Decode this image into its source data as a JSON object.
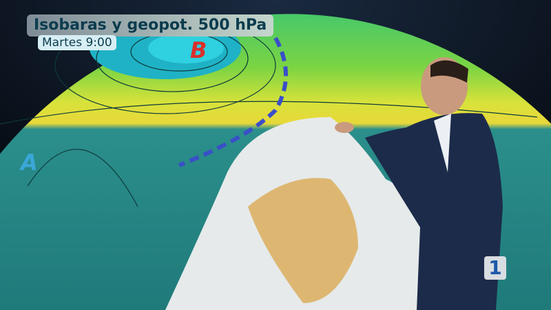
{
  "overlay": {
    "title": "Isobaras y geopot. 500 hPa",
    "subtitle": "Martes 9:00"
  },
  "map": {
    "low_label": "B",
    "high_label": "A",
    "low_color": "#d9302b",
    "high_color": "#3aa7d8"
  },
  "channel_logo": {
    "text": "1",
    "color": "#1b58a8"
  },
  "colors": {
    "ocean_teal": "#2a8f8a",
    "band_green": "#6fcf3c",
    "band_yellow": "#e4e03a",
    "land": "#e8ecec",
    "desert": "#d9a54a",
    "front": "#3a4fc8"
  }
}
